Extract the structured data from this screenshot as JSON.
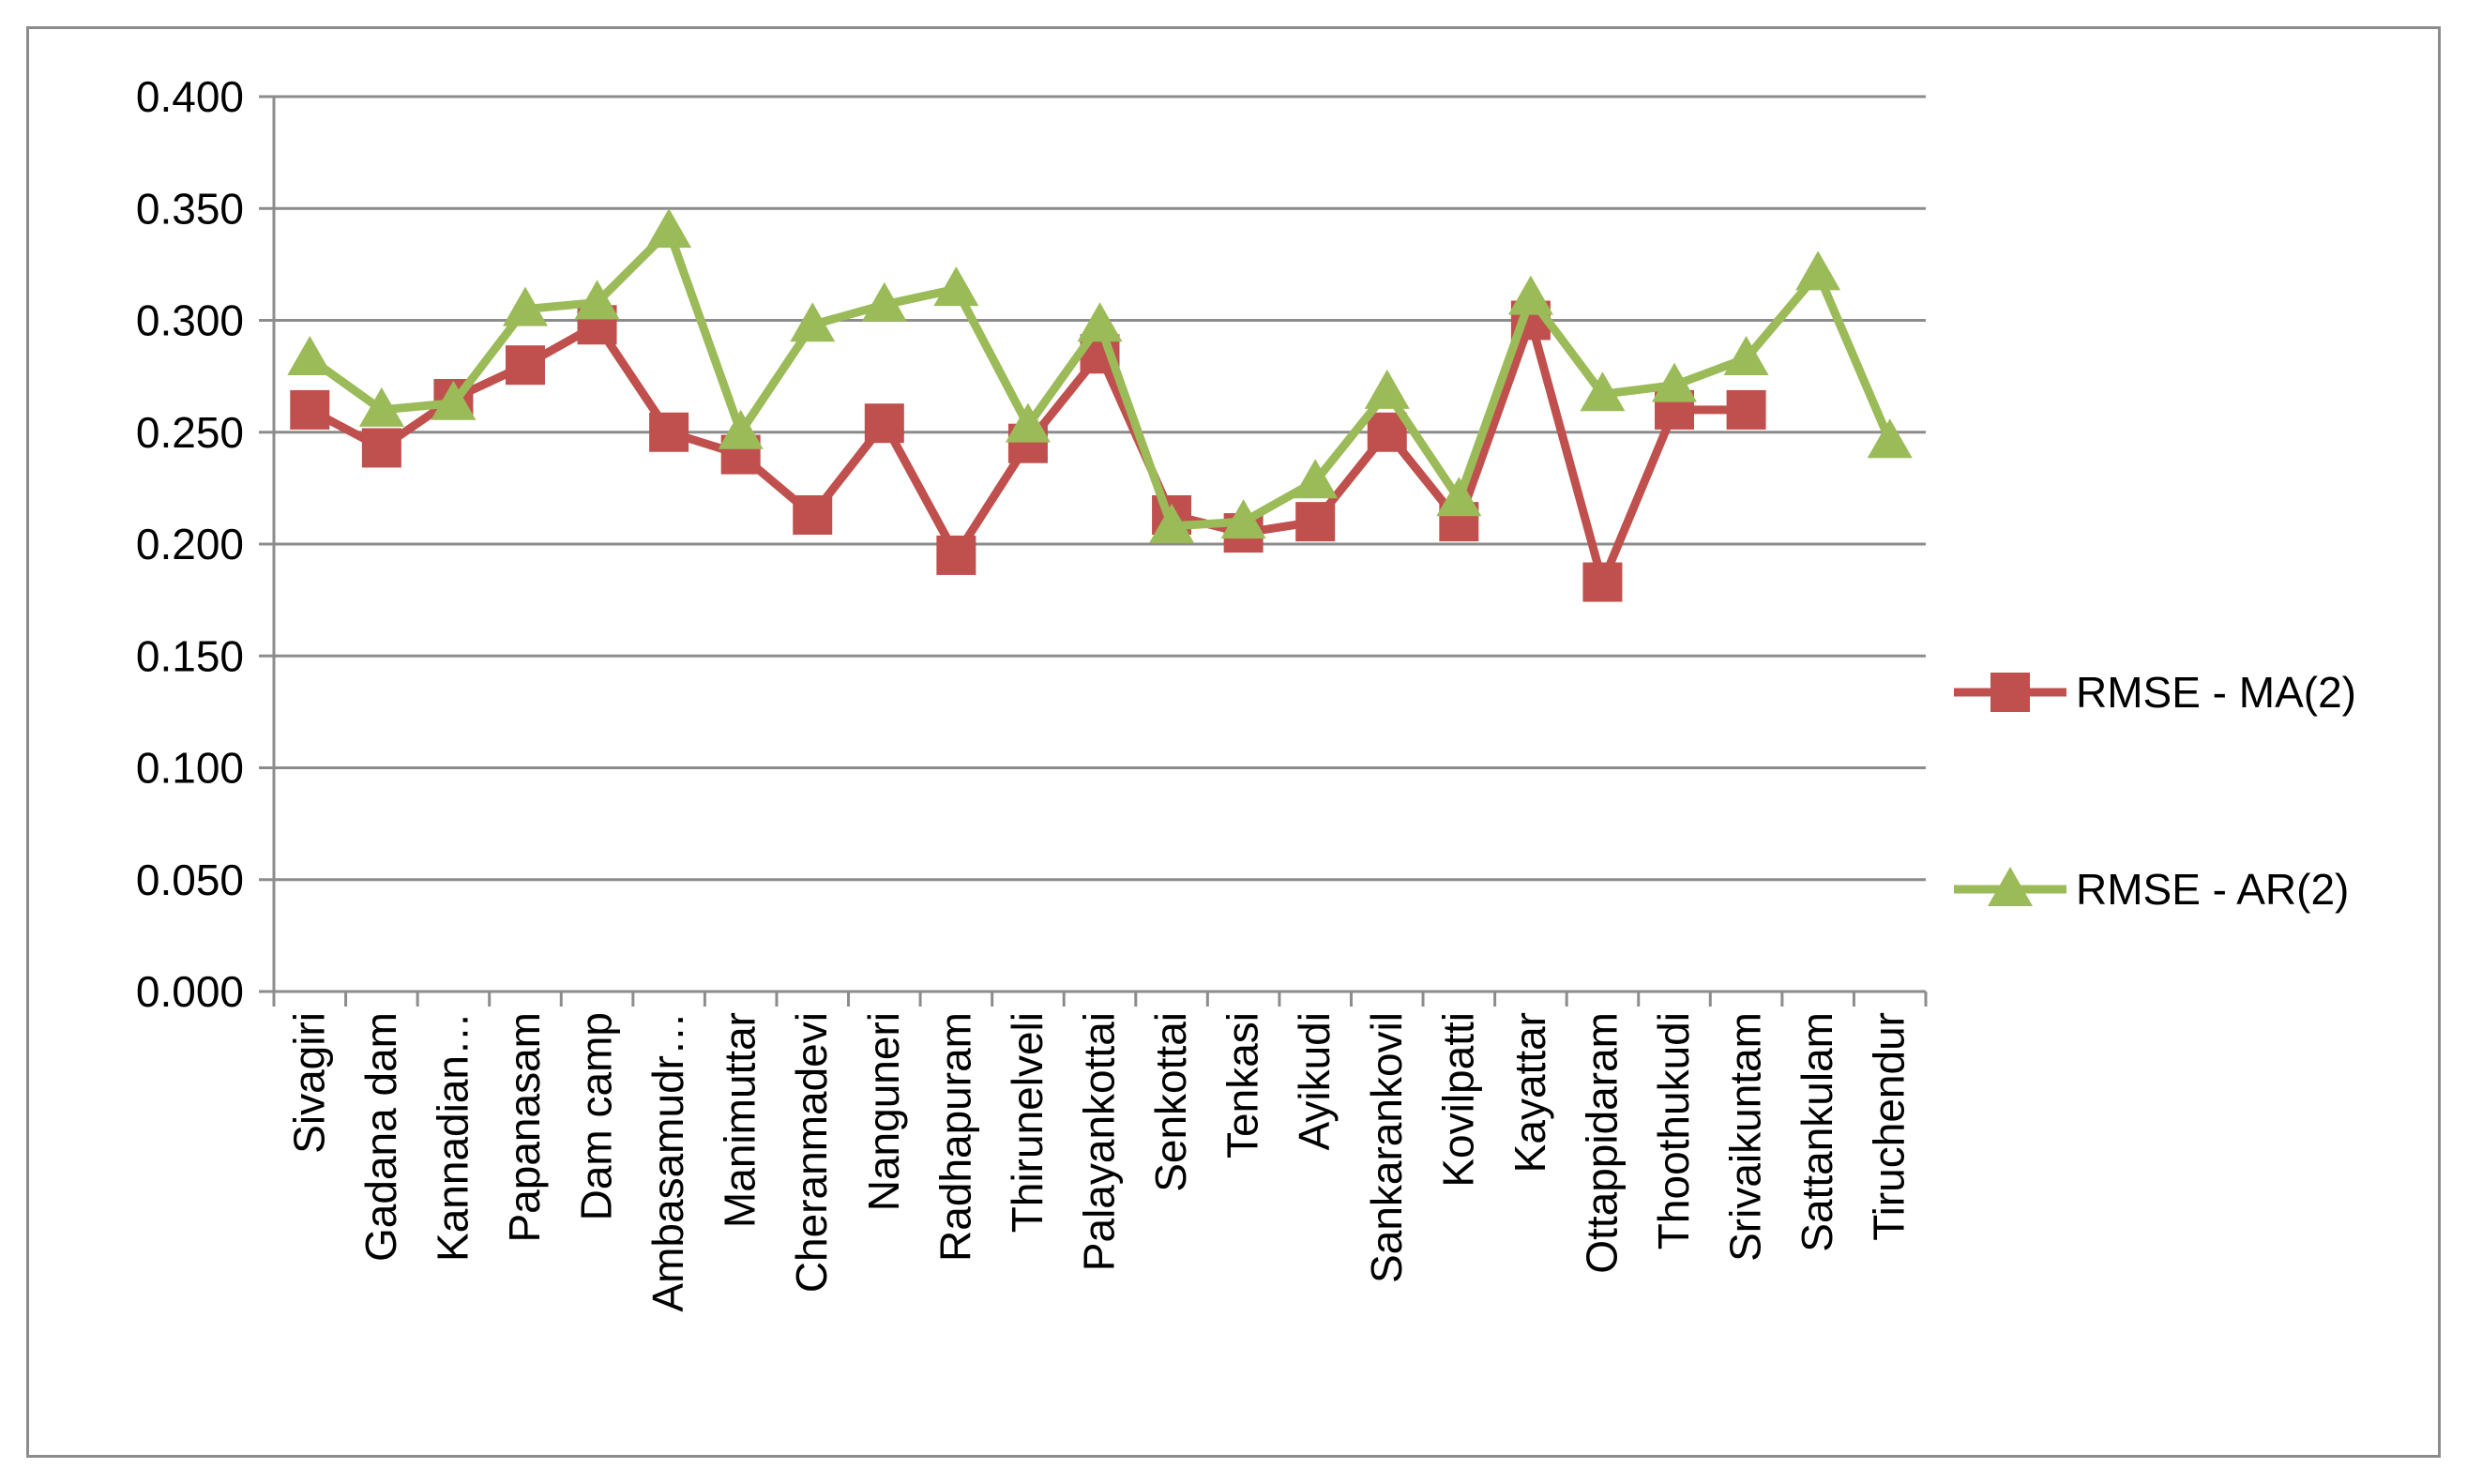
{
  "chart_data": {
    "type": "line",
    "title": "",
    "xlabel": "",
    "ylabel": "",
    "ylim": [
      0,
      0.4
    ],
    "ytick_step": 0.05,
    "ytick_labels": [
      "0.000",
      "0.050",
      "0.100",
      "0.150",
      "0.200",
      "0.250",
      "0.300",
      "0.350",
      "0.400"
    ],
    "grid": true,
    "legend_position": "right",
    "categories": [
      "Sivagiri",
      "Gadana dam",
      "Kannadian…",
      "Papanasam",
      "Dam camp",
      "Ambasamudr…",
      "Manimuttar",
      "Cheranmadevi",
      "Nanguneri",
      "Radhapuram",
      "Thirunelveli",
      "Palayankottai",
      "Senkottai",
      "Tenkasi",
      "Ayikudi",
      "Sankarankovil",
      "Kovilpatti",
      "Kayattar",
      "Ottappidaram",
      "Thoothukudi",
      "Srivaikuntam",
      "Sattankulam",
      "Tiruchendur"
    ],
    "series": [
      {
        "name": "RMSE - MA(2)",
        "color": "#c0504d",
        "marker": "square",
        "values": [
          0.26,
          0.243,
          0.265,
          0.28,
          0.298,
          0.25,
          0.24,
          0.213,
          0.254,
          0.195,
          0.245,
          0.285,
          0.213,
          0.205,
          0.21,
          0.25,
          0.21,
          0.3,
          0.183,
          0.26,
          0.26,
          null,
          null
        ]
      },
      {
        "name": "RMSE - AR(2)",
        "color": "#9bbb59",
        "marker": "triangle",
        "values": [
          0.283,
          0.26,
          0.263,
          0.305,
          0.308,
          0.34,
          0.25,
          0.298,
          0.307,
          0.314,
          0.253,
          0.298,
          0.208,
          0.21,
          0.228,
          0.268,
          0.22,
          0.31,
          0.267,
          0.271,
          0.283,
          0.321,
          0.246
        ]
      }
    ]
  }
}
